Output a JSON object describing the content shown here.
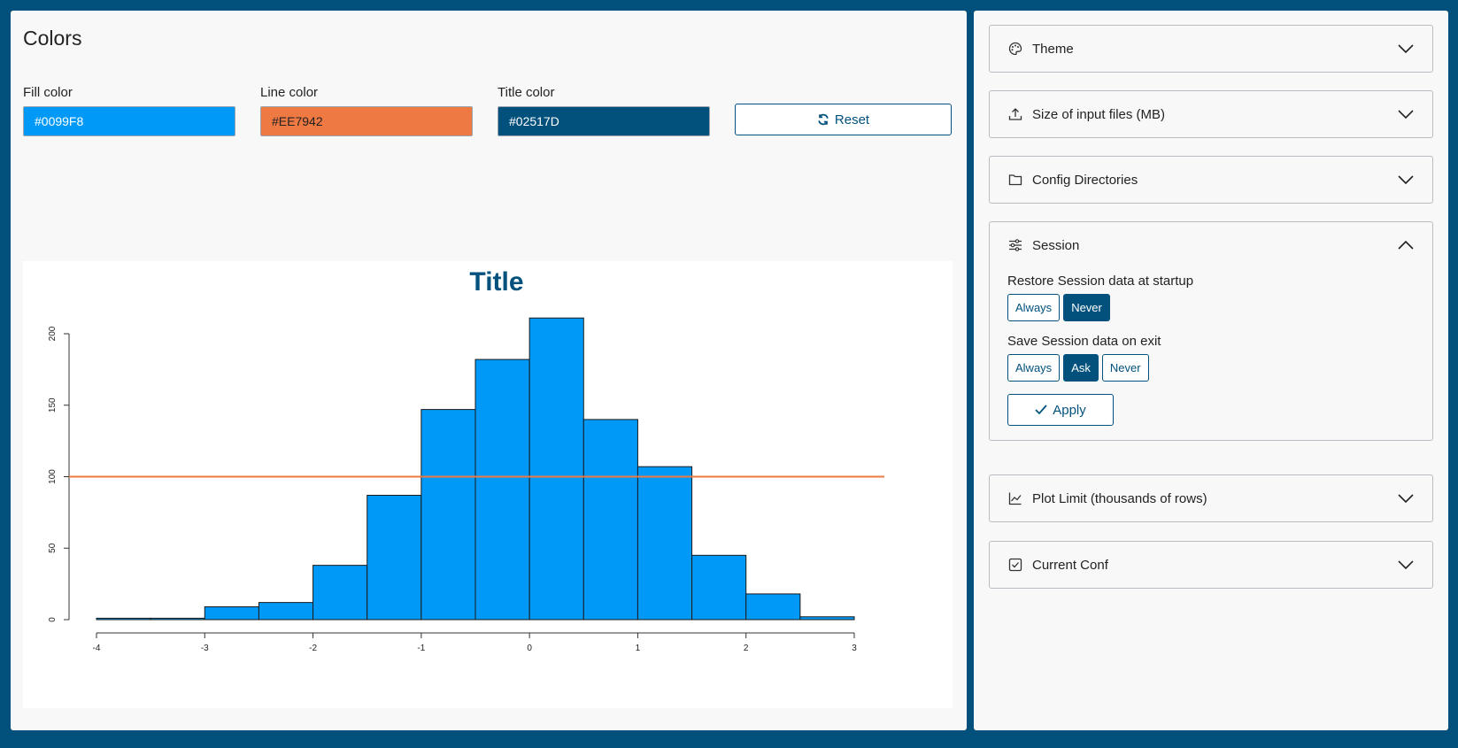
{
  "colors": {
    "title": "Colors",
    "fill": {
      "label": "Fill color",
      "value": "#0099F8"
    },
    "line": {
      "label": "Line color",
      "value": "#EE7942"
    },
    "title_color": {
      "label": "Title color",
      "value": "#02517D"
    },
    "reset_label": "Reset"
  },
  "chart_data": {
    "type": "bar",
    "title": "Title",
    "xlabel": "",
    "ylabel": "",
    "bins": [
      {
        "from": -4.0,
        "to": -3.5,
        "count": 1
      },
      {
        "from": -3.5,
        "to": -3.0,
        "count": 1
      },
      {
        "from": -3.0,
        "to": -2.5,
        "count": 9
      },
      {
        "from": -2.5,
        "to": -2.0,
        "count": 12
      },
      {
        "from": -2.0,
        "to": -1.5,
        "count": 38
      },
      {
        "from": -1.5,
        "to": -1.0,
        "count": 87
      },
      {
        "from": -1.0,
        "to": -0.5,
        "count": 147
      },
      {
        "from": -0.5,
        "to": 0.0,
        "count": 182
      },
      {
        "from": 0.0,
        "to": 0.5,
        "count": 211
      },
      {
        "from": 0.5,
        "to": 1.0,
        "count": 140
      },
      {
        "from": 1.0,
        "to": 1.5,
        "count": 107
      },
      {
        "from": 1.5,
        "to": 2.0,
        "count": 45
      },
      {
        "from": 2.0,
        "to": 2.5,
        "count": 18
      },
      {
        "from": 2.5,
        "to": 3.0,
        "count": 2
      }
    ],
    "reference_line_y": 100,
    "xlim": [
      -4,
      3
    ],
    "ylim": [
      0,
      215
    ],
    "x_ticks": [
      -4,
      -3,
      -2,
      -1,
      0,
      1,
      2,
      3
    ],
    "y_ticks": [
      0,
      50,
      100,
      150,
      200
    ],
    "fill_color": "#0099F8",
    "line_color": "#EE7942",
    "title_color": "#02517D",
    "grid": false
  },
  "sidebar": {
    "theme": {
      "label": "Theme",
      "icon": "palette-icon"
    },
    "size": {
      "label": "Size of input files (MB)",
      "icon": "upload-icon"
    },
    "config": {
      "label": "Config Directories",
      "icon": "folder-icon"
    },
    "session": {
      "label": "Session",
      "icon": "sliders-icon",
      "restore_label": "Restore Session data at startup",
      "restore_options": [
        "Always",
        "Never"
      ],
      "restore_selected": "Never",
      "save_label": "Save Session data on exit",
      "save_options": [
        "Always",
        "Ask",
        "Never"
      ],
      "save_selected": "Ask",
      "apply_label": "Apply"
    },
    "plot_limit": {
      "label": "Plot Limit (thousands of rows)",
      "icon": "line-chart-icon"
    },
    "current_conf": {
      "label": "Current Conf",
      "icon": "checkbox-icon"
    }
  }
}
